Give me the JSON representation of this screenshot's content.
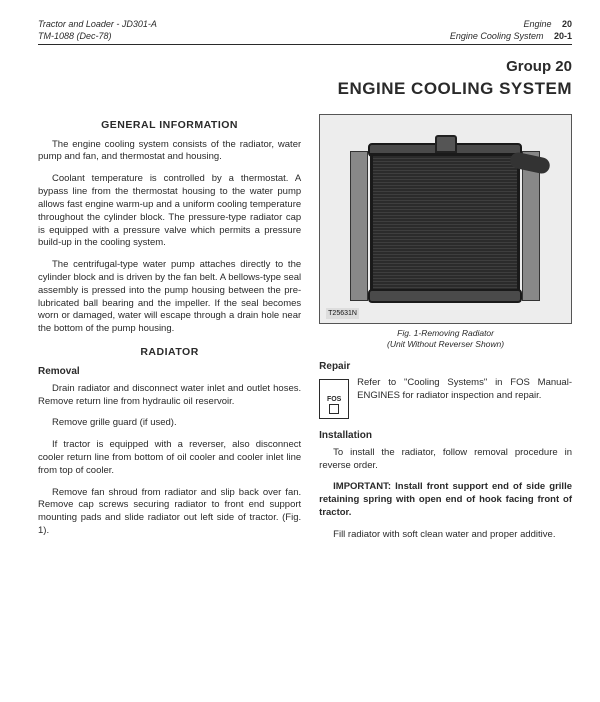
{
  "header": {
    "left_line1": "Tractor and Loader - JD301-A",
    "left_line2": "TM-1088   (Dec-78)",
    "right_line1": "Engine",
    "right_line1_pg": "20",
    "right_line2": "Engine Cooling System",
    "right_line2_pg": "20-1"
  },
  "group": {
    "line1": "Group 20",
    "line2": "ENGINE COOLING SYSTEM"
  },
  "left": {
    "h_general": "GENERAL INFORMATION",
    "p1": "The engine cooling system consists of the radiator, water pump and fan, and thermostat and housing.",
    "p2": "Coolant temperature is controlled by a thermostat. A bypass line from the thermostat housing to the water pump allows fast engine warm-up and a uniform cooling temperature throughout the cylinder block. The pressure-type radiator cap is equipped with a pressure valve which permits a pressure build-up in the cooling system.",
    "p3": "The centrifugal-type water pump attaches directly to the cylinder block and is driven by the fan belt. A bellows-type seal assembly is pressed into the pump housing between the pre-lubricated ball bearing and the impeller. If the seal becomes worn or damaged, water will escape through a drain hole near the bottom of the pump housing.",
    "h_radiator": "RADIATOR",
    "h_removal": "Removal",
    "p4": "Drain radiator and disconnect water inlet and outlet hoses. Remove return line from hydraulic oil reservoir.",
    "p5": "Remove grille guard (if used).",
    "p6": "If tractor is equipped with a reverser, also disconnect cooler return line from bottom of oil cooler and cooler inlet line from top of cooler.",
    "p7": "Remove fan shroud from radiator and slip back over fan. Remove cap screws securing radiator to front end support mounting pads and slide radiator out left side of tractor. (Fig. 1)."
  },
  "right": {
    "fig_label": "T25631N",
    "caption_l1": "Fig. 1-Removing Radiator",
    "caption_l2": "(Unit Without Reverser Shown)",
    "h_repair": "Repair",
    "fos_label": "FOS",
    "fos_text": "Refer to \"Cooling Systems\" in FOS Manual-ENGINES for radiator inspection and repair.",
    "h_install": "Installation",
    "p_install1": "To install the radiator, follow removal procedure in reverse order.",
    "p_important_label": "IMPORTANT: ",
    "p_important": "Install front support end of side grille retaining spring with open end of hook facing front of tractor.",
    "p_install2": "Fill radiator with soft clean water and proper additive."
  }
}
